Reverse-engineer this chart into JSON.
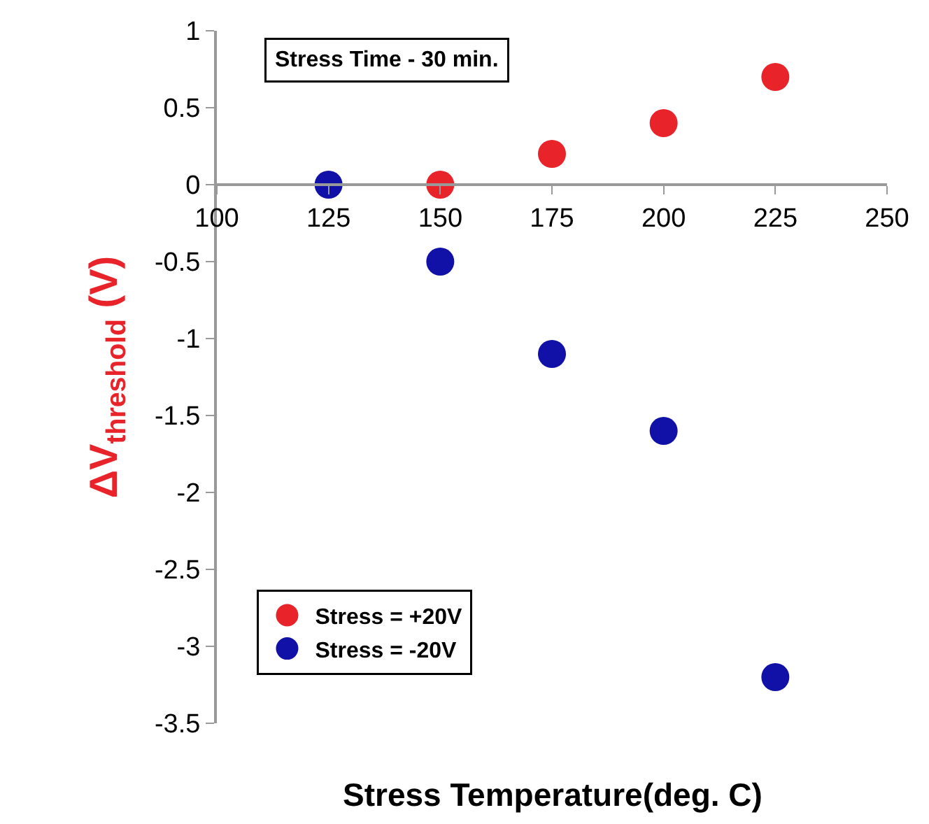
{
  "chart_data": {
    "type": "scatter",
    "ylabel": "ΔV$_{threshold}$ (V)",
    "xlabel": "Stress Temperature(deg. C)",
    "annotations": [
      "Stress Time - 30 min."
    ],
    "x": [
      125,
      150,
      175,
      200,
      225
    ],
    "series": [
      {
        "name": "Stress = +20V",
        "color": "#e8232a",
        "values": [
          null,
          0,
          0.2,
          0.4,
          0.7
        ]
      },
      {
        "name": "Stress = -20V",
        "color": "#1111a8",
        "values": [
          0,
          -0.5,
          -1.1,
          -1.6,
          -3.2
        ]
      }
    ],
    "xlim": [
      100,
      250
    ],
    "xticks": [
      100,
      125,
      150,
      175,
      200,
      225,
      250
    ],
    "ylim": [
      -3.5,
      1
    ],
    "yticks": [
      1,
      0.5,
      0,
      -0.5,
      -1,
      -1.5,
      -2,
      -2.5,
      -3,
      -3.5
    ],
    "marker": "circle",
    "legend": "bottom left"
  }
}
